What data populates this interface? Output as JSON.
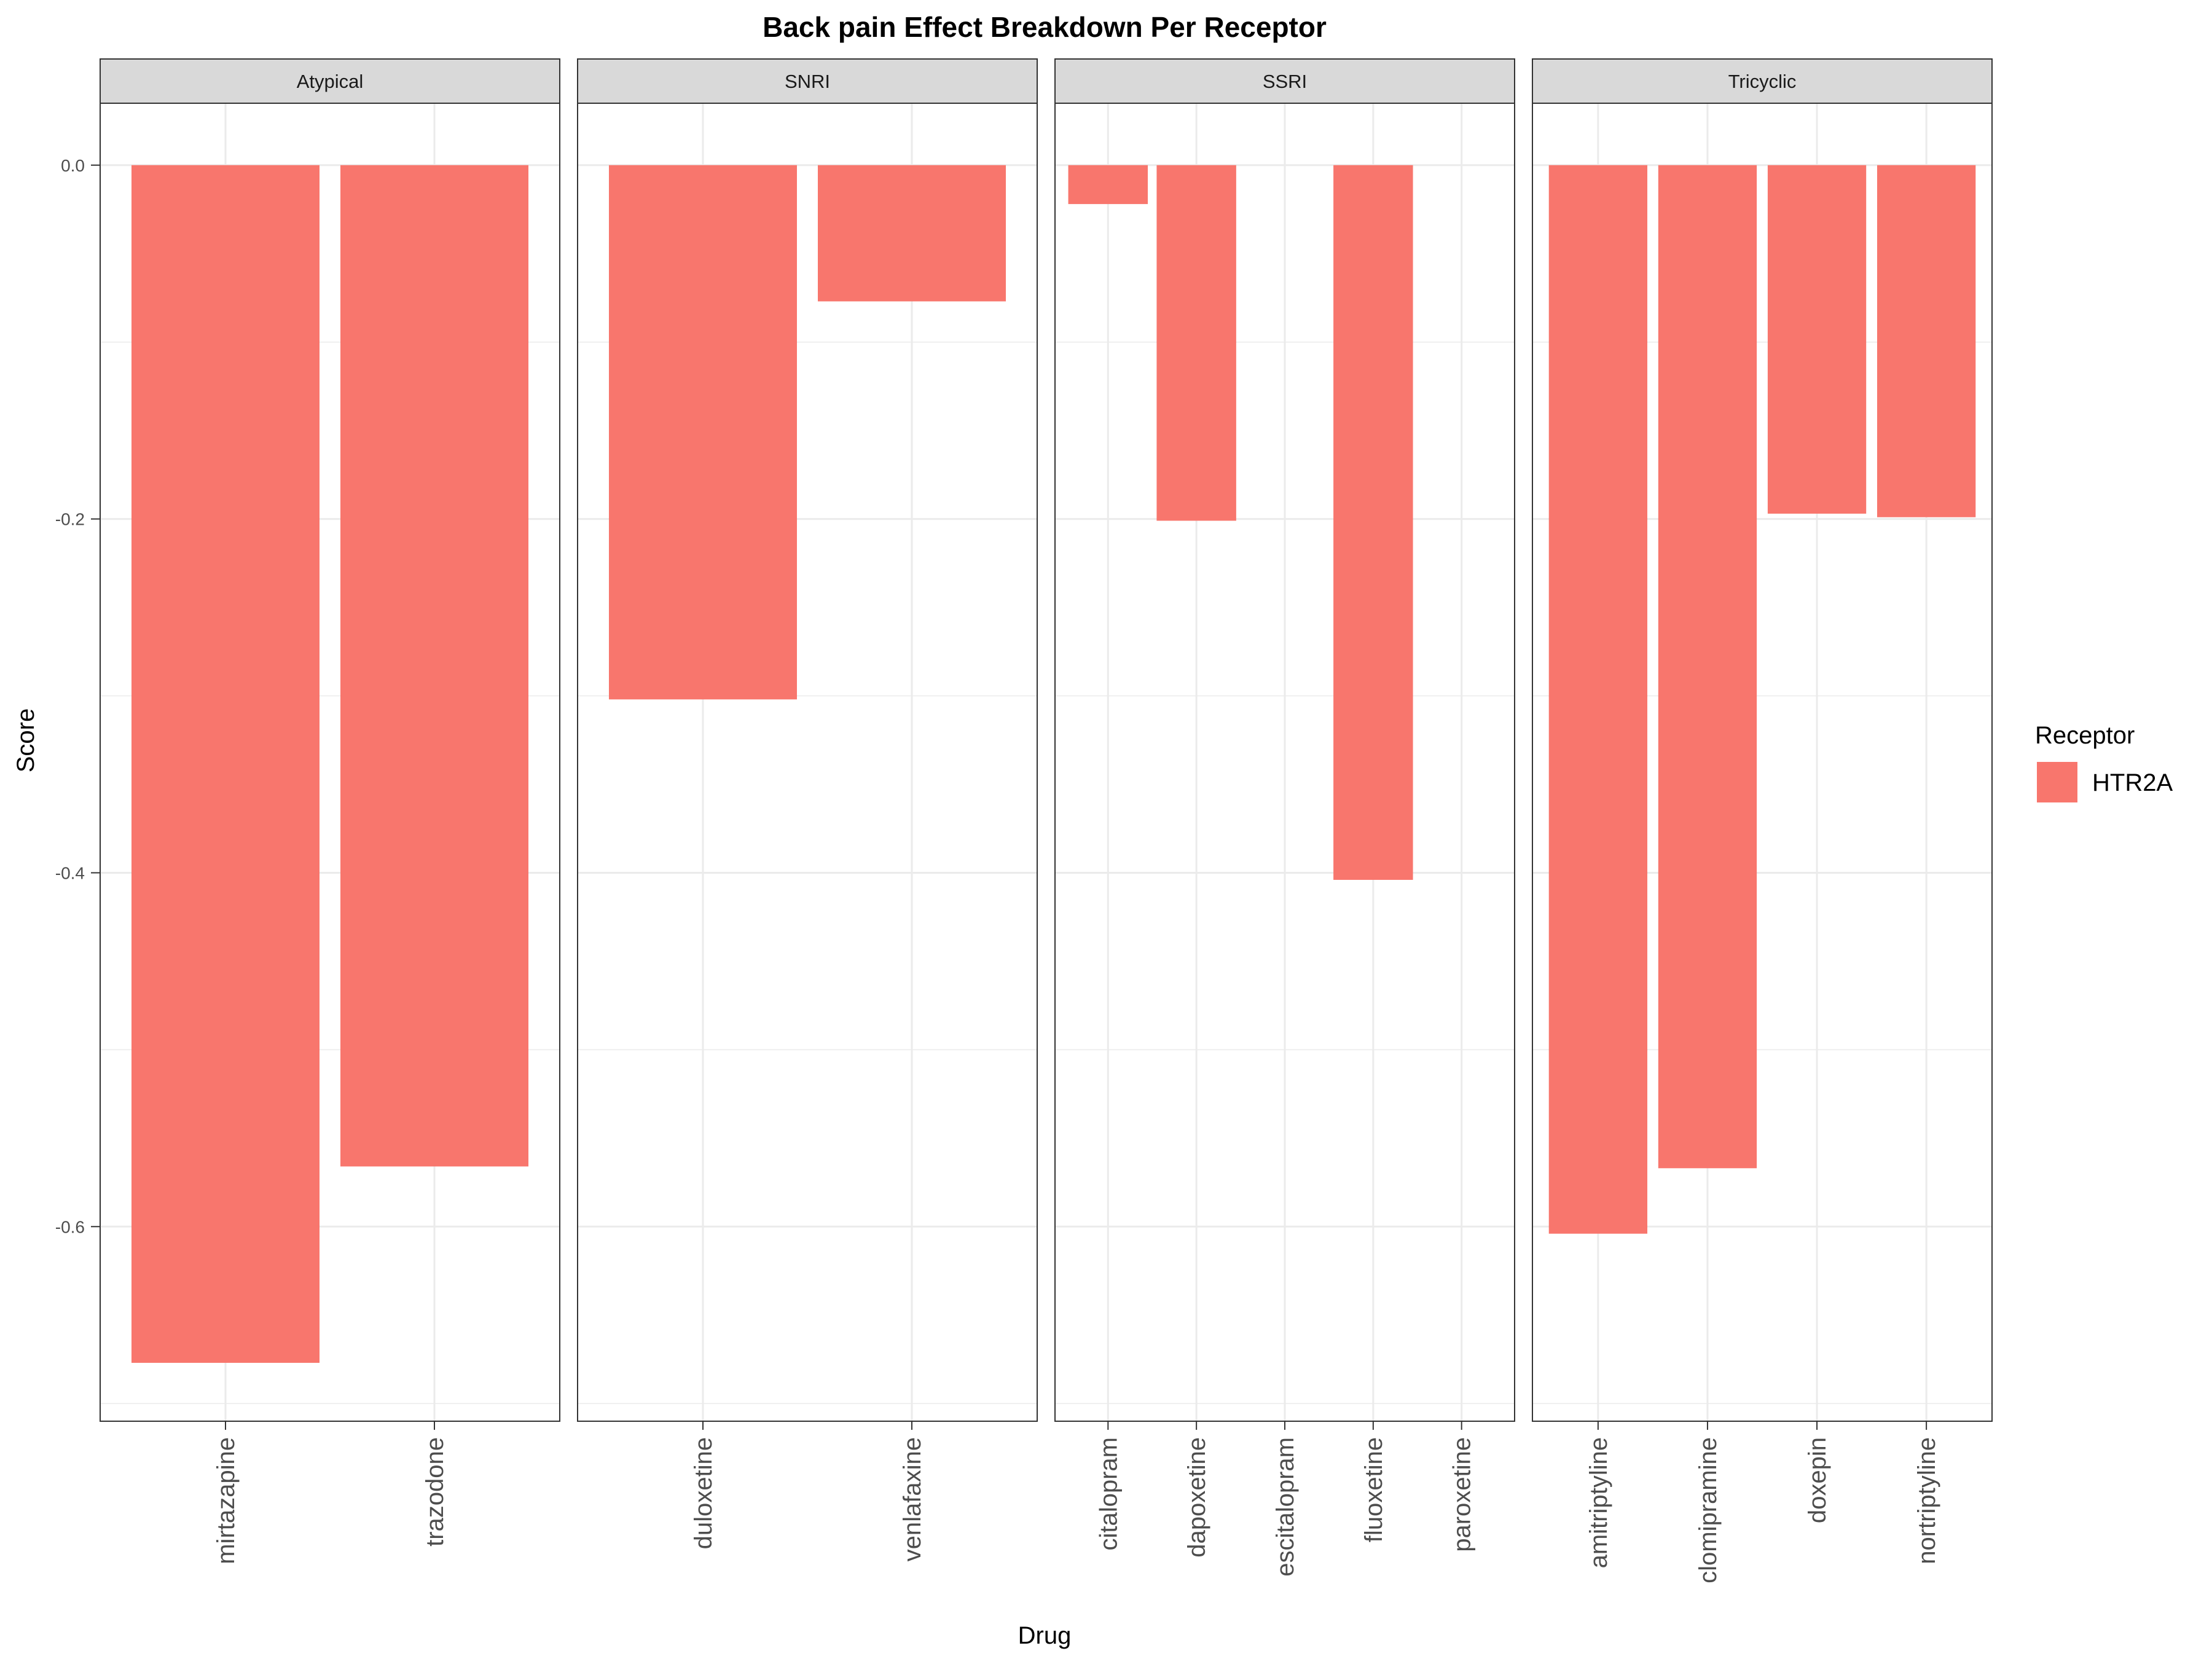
{
  "chart_data": {
    "type": "bar",
    "title": "Back pain Effect Breakdown Per Receptor",
    "xlabel": "Drug",
    "ylabel": "Score",
    "ylim": [
      -0.71,
      0.035
    ],
    "yticks": [
      0.0,
      -0.2,
      -0.4,
      -0.6
    ],
    "ytick_labels": [
      "0.0",
      "-0.2",
      "-0.4",
      "-0.6"
    ],
    "grid": true,
    "legend_position": "right",
    "legend": {
      "title": "Receptor",
      "entries": [
        {
          "name": "HTR2A",
          "color": "#F8766D"
        }
      ]
    },
    "facets": [
      {
        "name": "Atypical",
        "categories": [
          "mirtazapine",
          "trazodone"
        ],
        "series": [
          {
            "name": "HTR2A",
            "values": [
              -0.677,
              -0.566
            ]
          }
        ]
      },
      {
        "name": "SNRI",
        "categories": [
          "duloxetine",
          "venlafaxine"
        ],
        "series": [
          {
            "name": "HTR2A",
            "values": [
              -0.302,
              -0.077
            ]
          }
        ]
      },
      {
        "name": "SSRI",
        "categories": [
          "citalopram",
          "dapoxetine",
          "escitalopram",
          "fluoxetine",
          "paroxetine"
        ],
        "series": [
          {
            "name": "HTR2A",
            "values": [
              -0.022,
              -0.201,
              null,
              -0.404,
              null
            ]
          }
        ]
      },
      {
        "name": "Tricyclic",
        "categories": [
          "amitriptyline",
          "clomipramine",
          "doxepin",
          "nortriptyline"
        ],
        "series": [
          {
            "name": "HTR2A",
            "values": [
              -0.604,
              -0.567,
              -0.197,
              -0.199
            ]
          }
        ]
      }
    ]
  },
  "colors": {
    "bar": "#F8766D",
    "strip_bg": "#D9D9D9",
    "grid_major": "#EBEBEB",
    "panel_border": "#333333"
  }
}
